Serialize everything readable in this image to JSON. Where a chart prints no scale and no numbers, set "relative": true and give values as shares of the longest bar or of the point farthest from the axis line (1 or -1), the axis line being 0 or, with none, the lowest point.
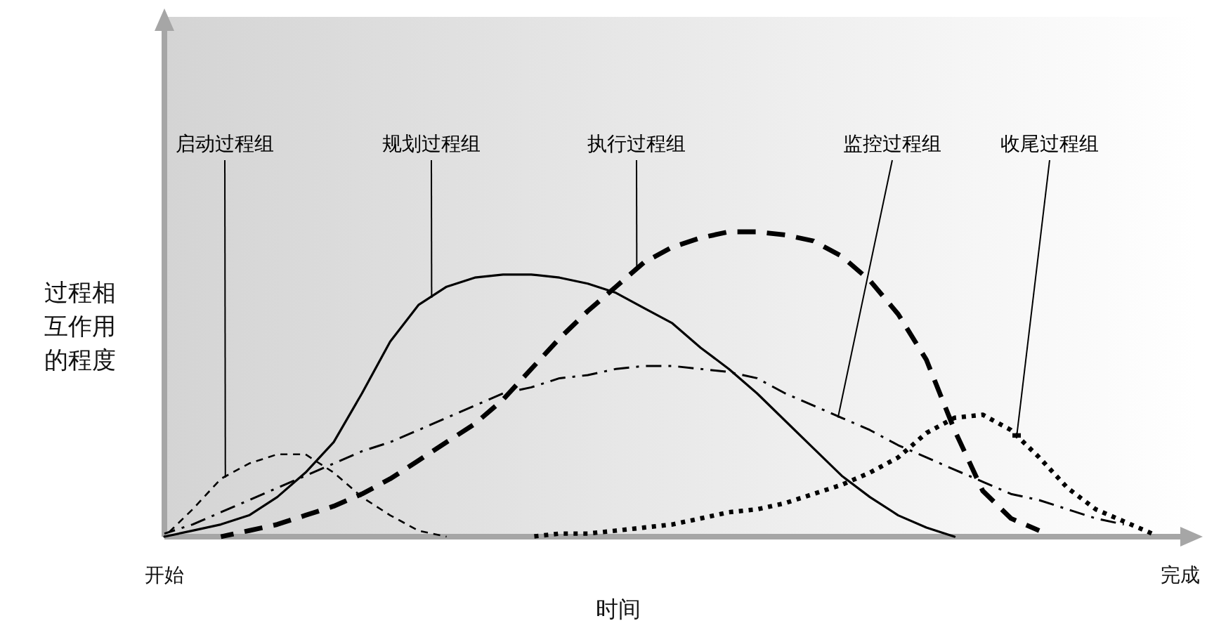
{
  "chart_data": {
    "type": "line",
    "relative": true,
    "xlabel": "时间",
    "ylabel": "过程相互作用的程度",
    "legend": false,
    "tick_labels": "x",
    "categories": [
      "开始",
      null,
      null,
      null,
      null,
      null,
      null,
      null,
      null,
      null,
      null,
      null,
      null,
      null,
      null,
      null,
      null,
      null,
      null,
      null,
      null,
      null,
      null,
      null,
      null,
      null,
      null,
      null,
      null,
      null,
      null,
      null,
      null,
      null,
      null,
      null,
      "完成"
    ],
    "series": [
      {
        "name": "启动过程组",
        "color": "#000000",
        "line_style": "dashed",
        "values": [
          0,
          0.09,
          0.19,
          0.24,
          0.27,
          0.27,
          0.21,
          0.13,
          0.07,
          0.02,
          0,
          null,
          null,
          null,
          null,
          null,
          null,
          null,
          null,
          null,
          null,
          null,
          null,
          null,
          null,
          null,
          null,
          null,
          null,
          null,
          null,
          null,
          null,
          null,
          null,
          null,
          null
        ]
      },
      {
        "name": "规划过程组",
        "color": "#000000",
        "line_style": "solid",
        "values": [
          0,
          0.02,
          0.04,
          0.07,
          0.13,
          0.21,
          0.31,
          0.47,
          0.64,
          0.76,
          0.82,
          0.85,
          0.86,
          0.86,
          0.85,
          0.83,
          0.8,
          0.75,
          0.7,
          0.62,
          0.55,
          0.47,
          0.38,
          0.29,
          0.2,
          0.13,
          0.07,
          0.03,
          0,
          null,
          null,
          null,
          null,
          null,
          null,
          null,
          null
        ]
      },
      {
        "name": "执行过程组",
        "color": "#000000",
        "line_style": "dashed",
        "values": [
          null,
          null,
          0,
          0.02,
          0.04,
          0.07,
          0.1,
          0.14,
          0.19,
          0.25,
          0.31,
          0.37,
          0.45,
          0.55,
          0.65,
          0.74,
          0.82,
          0.9,
          0.95,
          0.98,
          1,
          1,
          0.99,
          0.97,
          0.92,
          0.84,
          0.73,
          0.58,
          0.35,
          0.15,
          0.06,
          0.02,
          null,
          null,
          null,
          null,
          null
        ]
      },
      {
        "name": "监控过程组",
        "color": "#000000",
        "line_style": "dashdot",
        "values": [
          0.01,
          0.04,
          0.08,
          0.12,
          0.16,
          0.2,
          0.24,
          0.28,
          0.31,
          0.35,
          0.39,
          0.43,
          0.47,
          0.49,
          0.52,
          0.53,
          0.55,
          0.56,
          0.56,
          0.55,
          0.54,
          0.52,
          0.47,
          0.43,
          0.39,
          0.35,
          0.3,
          0.26,
          0.22,
          0.18,
          0.14,
          0.12,
          0.09,
          0.06,
          0.04,
          null,
          null
        ]
      },
      {
        "name": "收尾过程组",
        "color": "#000000",
        "line_style": "dotted",
        "values": [
          null,
          null,
          null,
          null,
          null,
          null,
          null,
          null,
          null,
          null,
          null,
          null,
          null,
          0,
          0.01,
          0.01,
          0.02,
          0.03,
          0.04,
          0.06,
          0.08,
          0.09,
          0.11,
          0.14,
          0.17,
          0.21,
          0.26,
          0.34,
          0.39,
          0.4,
          0.35,
          0.26,
          0.16,
          0.09,
          0.05,
          0.01,
          null
        ]
      }
    ]
  }
}
